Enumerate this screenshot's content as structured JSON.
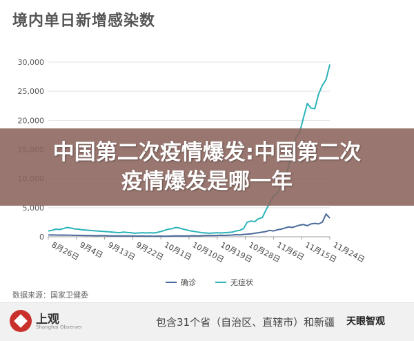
{
  "chart_data": {
    "type": "line",
    "title": "境内单日新增感染数",
    "xlabel": "",
    "ylabel": "",
    "ylim": [
      0,
      30000
    ],
    "yticks": [
      "0",
      "5,000",
      "10,000",
      "15,000",
      "20,000",
      "25,000",
      "30,000"
    ],
    "ytick_values": [
      0,
      5000,
      10000,
      15000,
      20000,
      25000,
      30000
    ],
    "xtick_labels": [
      "8月26日",
      "9月4日",
      "9月13日",
      "9月22日",
      "10月1日",
      "10月10日",
      "10月19日",
      "10月28日",
      "11月6日",
      "11月15日",
      "11月24日"
    ],
    "grid": true,
    "legend_position": "bottom",
    "series": [
      {
        "name": "确诊",
        "color": "#4a6a9a",
        "values": [
          300,
          320,
          300,
          280,
          300,
          290,
          270,
          250,
          240,
          220,
          210,
          200,
          190,
          180,
          200,
          190,
          170,
          160,
          150,
          150,
          160,
          150,
          140,
          130,
          120,
          130,
          110,
          120,
          100,
          110,
          120,
          100,
          110,
          130,
          150,
          140,
          130,
          150,
          170,
          180,
          160,
          190,
          200,
          220,
          210,
          230,
          250,
          240,
          260,
          300,
          350,
          330,
          400,
          450,
          500,
          600,
          700,
          800,
          900,
          1100,
          1000,
          1200,
          1300,
          1500,
          1700,
          1600,
          1800,
          2000,
          2100,
          1900,
          2200,
          2300,
          2200,
          2500,
          3900,
          3200
        ]
      },
      {
        "name": "无症状",
        "color": "#2bb3b8",
        "values": [
          1000,
          1100,
          1300,
          1250,
          1400,
          1600,
          1500,
          1350,
          1300,
          1200,
          1150,
          1100,
          1050,
          1000,
          950,
          900,
          850,
          800,
          750,
          700,
          800,
          750,
          700,
          600,
          650,
          700,
          650,
          700,
          650,
          750,
          900,
          1100,
          1300,
          1400,
          1600,
          1500,
          1300,
          1150,
          1000,
          900,
          800,
          700,
          650,
          600,
          650,
          700,
          650,
          700,
          750,
          800,
          1000,
          1100,
          1400,
          2500,
          2700,
          2600,
          3100,
          3300,
          4600,
          5800,
          7000,
          7500,
          8600,
          10000,
          12000,
          14800,
          17000,
          18000,
          20500,
          22900,
          22100,
          22000,
          24500,
          26000,
          27000,
          29600
        ]
      }
    ]
  },
  "banner": {
    "line1": "中国第二次疫情爆发:中国第二次",
    "line2": "疫情爆发是哪一年"
  },
  "source": "数据来源：国家卫健委",
  "footer": {
    "logo_text": "上观",
    "logo_sub": "Shanghai Observer",
    "note": "包含31个省（自治区、直辖市）和新疆",
    "watermark": "天眼智观"
  }
}
